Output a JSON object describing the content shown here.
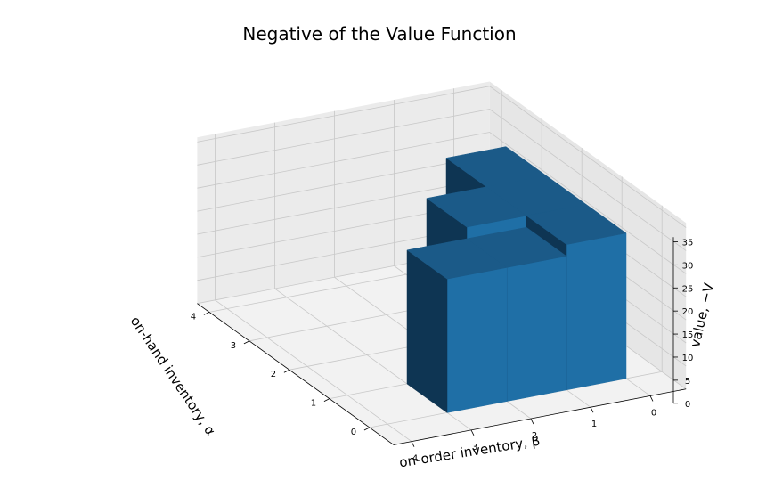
{
  "chart_data": {
    "type": "bar3d",
    "title": "Negative of the Value Function",
    "xlabel": "on-order inventory, β",
    "ylabel": "on-hand inventory, α",
    "zlabel": "value, −V",
    "x_ticks": [
      "0",
      "1",
      "2",
      "3",
      "4"
    ],
    "y_ticks": [
      "0",
      "1",
      "2",
      "3",
      "4"
    ],
    "z_ticks": [
      "0",
      "5",
      "10",
      "15",
      "20",
      "25",
      "30",
      "35"
    ],
    "zlim": [
      0,
      36
    ],
    "bar_color": "#1f6fa6",
    "bars": [
      {
        "on_order": 0,
        "on_hand": 0,
        "value": 31.5
      },
      {
        "on_order": 1,
        "on_hand": 0,
        "value": 29.0
      },
      {
        "on_order": 2,
        "on_hand": 0,
        "value": 29.0
      },
      {
        "on_order": 0,
        "on_hand": 1,
        "value": 31.5
      },
      {
        "on_order": 1,
        "on_hand": 1,
        "value": 31.5
      },
      {
        "on_order": 0,
        "on_hand": 2,
        "value": 31.5
      }
    ],
    "grid": true
  }
}
